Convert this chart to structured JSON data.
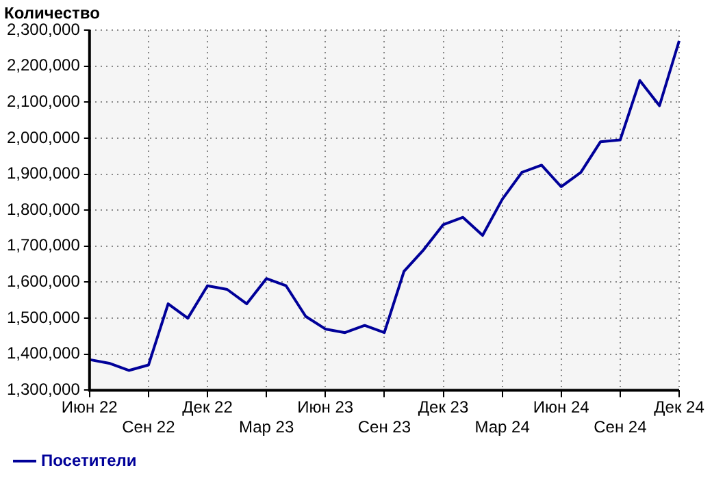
{
  "chart_data": {
    "type": "line",
    "ylabel": "Количество",
    "categories": [
      "Июн 22",
      null,
      null,
      "Сен 22",
      null,
      null,
      "Дек 22",
      null,
      null,
      "Мар 23",
      null,
      null,
      "Июн 23",
      null,
      null,
      "Сен 23",
      null,
      null,
      "Дек 23",
      null,
      null,
      "Мар 24",
      null,
      null,
      "Июн 24",
      null,
      null,
      "Сен 24",
      null,
      null,
      "Дек 24"
    ],
    "series": [
      {
        "name": "Посетители",
        "color": "#000099",
        "values": [
          1385000,
          1375000,
          1355000,
          1370000,
          1540000,
          1500000,
          1590000,
          1580000,
          1540000,
          1610000,
          1590000,
          1505000,
          1470000,
          1460000,
          1480000,
          1460000,
          1630000,
          1690000,
          1760000,
          1780000,
          1730000,
          1830000,
          1905000,
          1925000,
          1865000,
          1905000,
          1990000,
          1995000,
          2160000,
          2090000,
          2270000
        ]
      }
    ],
    "ylim": [
      1300000,
      2300000
    ],
    "yticks": [
      {
        "value": 1300000,
        "label": "1,300,000"
      },
      {
        "value": 1400000,
        "label": "1,400,000"
      },
      {
        "value": 1500000,
        "label": "1,500,000"
      },
      {
        "value": 1600000,
        "label": "1,600,000"
      },
      {
        "value": 1700000,
        "label": "1,700,000"
      },
      {
        "value": 1800000,
        "label": "1,800,000"
      },
      {
        "value": 1900000,
        "label": "1,900,000"
      },
      {
        "value": 2000000,
        "label": "2,000,000"
      },
      {
        "value": 2100000,
        "label": "2,100,000"
      },
      {
        "value": 2200000,
        "label": "2,200,000"
      },
      {
        "value": 2300000,
        "label": "2,300,000"
      }
    ],
    "grid": true,
    "legend": "bottom left",
    "marker": "none",
    "line_style": "solid"
  }
}
